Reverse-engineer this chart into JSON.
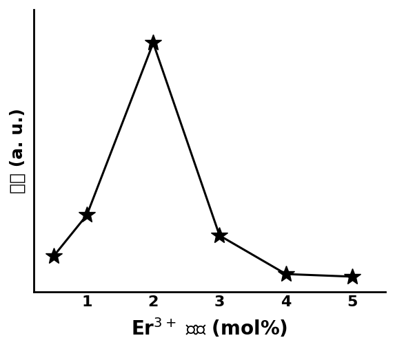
{
  "x": [
    0.5,
    1,
    2,
    3,
    4,
    5
  ],
  "y": [
    0.12,
    0.28,
    0.95,
    0.2,
    0.05,
    0.04
  ],
  "xlabel": "Er$^{3+}$ 浓度 (mol%)",
  "ylabel": "强度 (a. u.)",
  "xlim": [
    0.2,
    5.5
  ],
  "ylim": [
    -0.02,
    1.08
  ],
  "xticks": [
    1,
    2,
    3,
    4,
    5
  ],
  "line_color": "#000000",
  "line_width": 2.2,
  "marker": "*",
  "marker_size": 18,
  "xlabel_fontsize": 20,
  "ylabel_fontsize": 18,
  "tick_fontsize": 16,
  "background_color": "#ffffff"
}
